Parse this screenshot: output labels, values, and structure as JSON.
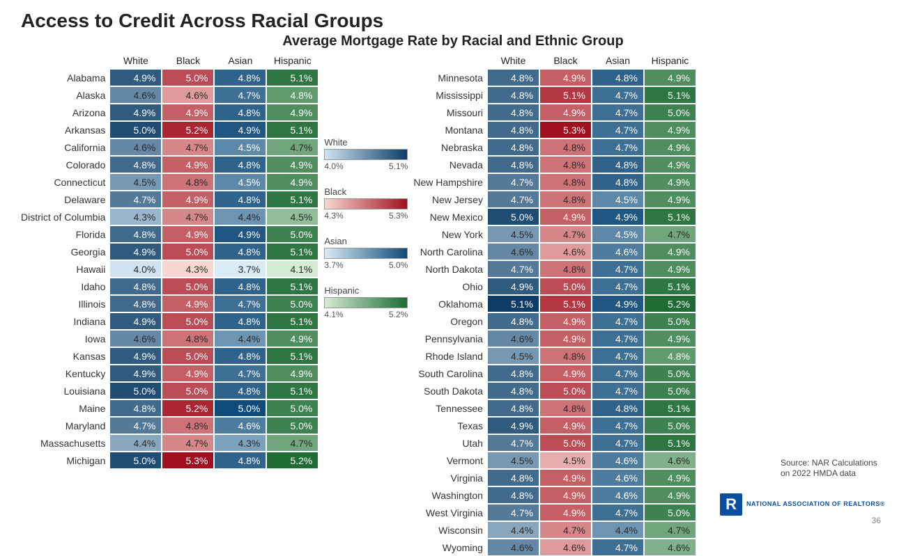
{
  "title": "Access to Credit Across Racial Groups",
  "subtitle": "Average Mortgage Rate by Racial and Ethnic Group",
  "columns": [
    "White",
    "Black",
    "Asian",
    "Hispanic"
  ],
  "scales": {
    "White": {
      "min": 4.0,
      "max": 5.1,
      "low": "#cfe3f2",
      "high": "#0d3d66"
    },
    "Black": {
      "min": 4.3,
      "max": 5.3,
      "low": "#f9d6d0",
      "high": "#a11020"
    },
    "Asian": {
      "min": 3.7,
      "max": 5.0,
      "low": "#d9ebf6",
      "high": "#104a78"
    },
    "Hispanic": {
      "min": 4.1,
      "max": 5.2,
      "low": "#d4ecd2",
      "high": "#1e6b34"
    }
  },
  "left": [
    {
      "s": "Alabama",
      "v": [
        4.9,
        5.0,
        4.8,
        5.1
      ]
    },
    {
      "s": "Alaska",
      "v": [
        4.6,
        4.6,
        4.7,
        4.8
      ]
    },
    {
      "s": "Arizona",
      "v": [
        4.9,
        4.9,
        4.8,
        4.9
      ]
    },
    {
      "s": "Arkansas",
      "v": [
        5.0,
        5.2,
        4.9,
        5.1
      ]
    },
    {
      "s": "California",
      "v": [
        4.6,
        4.7,
        4.5,
        4.7
      ]
    },
    {
      "s": "Colorado",
      "v": [
        4.8,
        4.9,
        4.8,
        4.9
      ]
    },
    {
      "s": "Connecticut",
      "v": [
        4.5,
        4.8,
        4.5,
        4.9
      ]
    },
    {
      "s": "Delaware",
      "v": [
        4.7,
        4.9,
        4.8,
        5.1
      ]
    },
    {
      "s": "District of Columbia",
      "v": [
        4.3,
        4.7,
        4.4,
        4.5
      ]
    },
    {
      "s": "Florida",
      "v": [
        4.8,
        4.9,
        4.9,
        5.0
      ]
    },
    {
      "s": "Georgia",
      "v": [
        4.9,
        5.0,
        4.8,
        5.1
      ]
    },
    {
      "s": "Hawaii",
      "v": [
        4.0,
        4.3,
        3.7,
        4.1
      ]
    },
    {
      "s": "Idaho",
      "v": [
        4.8,
        5.0,
        4.8,
        5.1
      ]
    },
    {
      "s": "Illinois",
      "v": [
        4.8,
        4.9,
        4.7,
        5.0
      ]
    },
    {
      "s": "Indiana",
      "v": [
        4.9,
        5.0,
        4.8,
        5.1
      ]
    },
    {
      "s": "Iowa",
      "v": [
        4.6,
        4.8,
        4.4,
        4.9
      ]
    },
    {
      "s": "Kansas",
      "v": [
        4.9,
        5.0,
        4.8,
        5.1
      ]
    },
    {
      "s": "Kentucky",
      "v": [
        4.9,
        4.9,
        4.7,
        4.9
      ]
    },
    {
      "s": "Louisiana",
      "v": [
        5.0,
        5.0,
        4.8,
        5.1
      ]
    },
    {
      "s": "Maine",
      "v": [
        4.8,
        5.2,
        5.0,
        5.0
      ]
    },
    {
      "s": "Maryland",
      "v": [
        4.7,
        4.8,
        4.6,
        5.0
      ]
    },
    {
      "s": "Massachusetts",
      "v": [
        4.4,
        4.7,
        4.3,
        4.7
      ]
    },
    {
      "s": "Michigan",
      "v": [
        5.0,
        5.3,
        4.8,
        5.2
      ]
    }
  ],
  "right": [
    {
      "s": "Minnesota",
      "v": [
        4.8,
        4.9,
        4.8,
        4.9
      ]
    },
    {
      "s": "Mississippi",
      "v": [
        4.8,
        5.1,
        4.7,
        5.1
      ]
    },
    {
      "s": "Missouri",
      "v": [
        4.8,
        4.9,
        4.7,
        5.0
      ]
    },
    {
      "s": "Montana",
      "v": [
        4.8,
        5.3,
        4.7,
        4.9
      ]
    },
    {
      "s": "Nebraska",
      "v": [
        4.8,
        4.8,
        4.7,
        4.9
      ]
    },
    {
      "s": "Nevada",
      "v": [
        4.8,
        4.8,
        4.8,
        4.9
      ]
    },
    {
      "s": "New Hampshire",
      "v": [
        4.7,
        4.8,
        4.8,
        4.9
      ]
    },
    {
      "s": "New Jersey",
      "v": [
        4.7,
        4.8,
        4.5,
        4.9
      ]
    },
    {
      "s": "New Mexico",
      "v": [
        5.0,
        4.9,
        4.9,
        5.1
      ]
    },
    {
      "s": "New York",
      "v": [
        4.5,
        4.7,
        4.5,
        4.7
      ]
    },
    {
      "s": "North Carolina",
      "v": [
        4.6,
        4.6,
        4.6,
        4.9
      ]
    },
    {
      "s": "North Dakota",
      "v": [
        4.7,
        4.8,
        4.7,
        4.9
      ]
    },
    {
      "s": "Ohio",
      "v": [
        4.9,
        5.0,
        4.7,
        5.1
      ]
    },
    {
      "s": "Oklahoma",
      "v": [
        5.1,
        5.1,
        4.9,
        5.2
      ]
    },
    {
      "s": "Oregon",
      "v": [
        4.8,
        4.9,
        4.7,
        5.0
      ]
    },
    {
      "s": "Pennsylvania",
      "v": [
        4.6,
        4.9,
        4.7,
        4.9
      ]
    },
    {
      "s": "Rhode Island",
      "v": [
        4.5,
        4.8,
        4.7,
        4.8
      ]
    },
    {
      "s": "South Carolina",
      "v": [
        4.8,
        4.9,
        4.7,
        5.0
      ]
    },
    {
      "s": "South Dakota",
      "v": [
        4.8,
        5.0,
        4.7,
        5.0
      ]
    },
    {
      "s": "Tennessee",
      "v": [
        4.8,
        4.8,
        4.8,
        5.1
      ]
    },
    {
      "s": "Texas",
      "v": [
        4.9,
        4.9,
        4.7,
        5.0
      ]
    },
    {
      "s": "Utah",
      "v": [
        4.7,
        5.0,
        4.7,
        5.1
      ]
    },
    {
      "s": "Vermont",
      "v": [
        4.5,
        4.5,
        4.6,
        4.6
      ]
    },
    {
      "s": "Virginia",
      "v": [
        4.8,
        4.9,
        4.6,
        4.9
      ]
    },
    {
      "s": "Washington",
      "v": [
        4.8,
        4.9,
        4.6,
        4.9
      ]
    },
    {
      "s": "West Virginia",
      "v": [
        4.7,
        4.9,
        4.7,
        5.0
      ]
    },
    {
      "s": "Wisconsin",
      "v": [
        4.4,
        4.7,
        4.4,
        4.7
      ]
    },
    {
      "s": "Wyoming",
      "v": [
        4.6,
        4.6,
        4.7,
        4.6
      ]
    }
  ],
  "source": "Source: NAR Calculations on 2022 HMDA data",
  "logo_text": "NATIONAL ASSOCIATION OF REALTORS®",
  "page_number": "36",
  "cell_fontsize": 14,
  "label_fontsize": 14,
  "title_fontsize": 28,
  "subtitle_fontsize": 20,
  "text_light_threshold": 0.55
}
